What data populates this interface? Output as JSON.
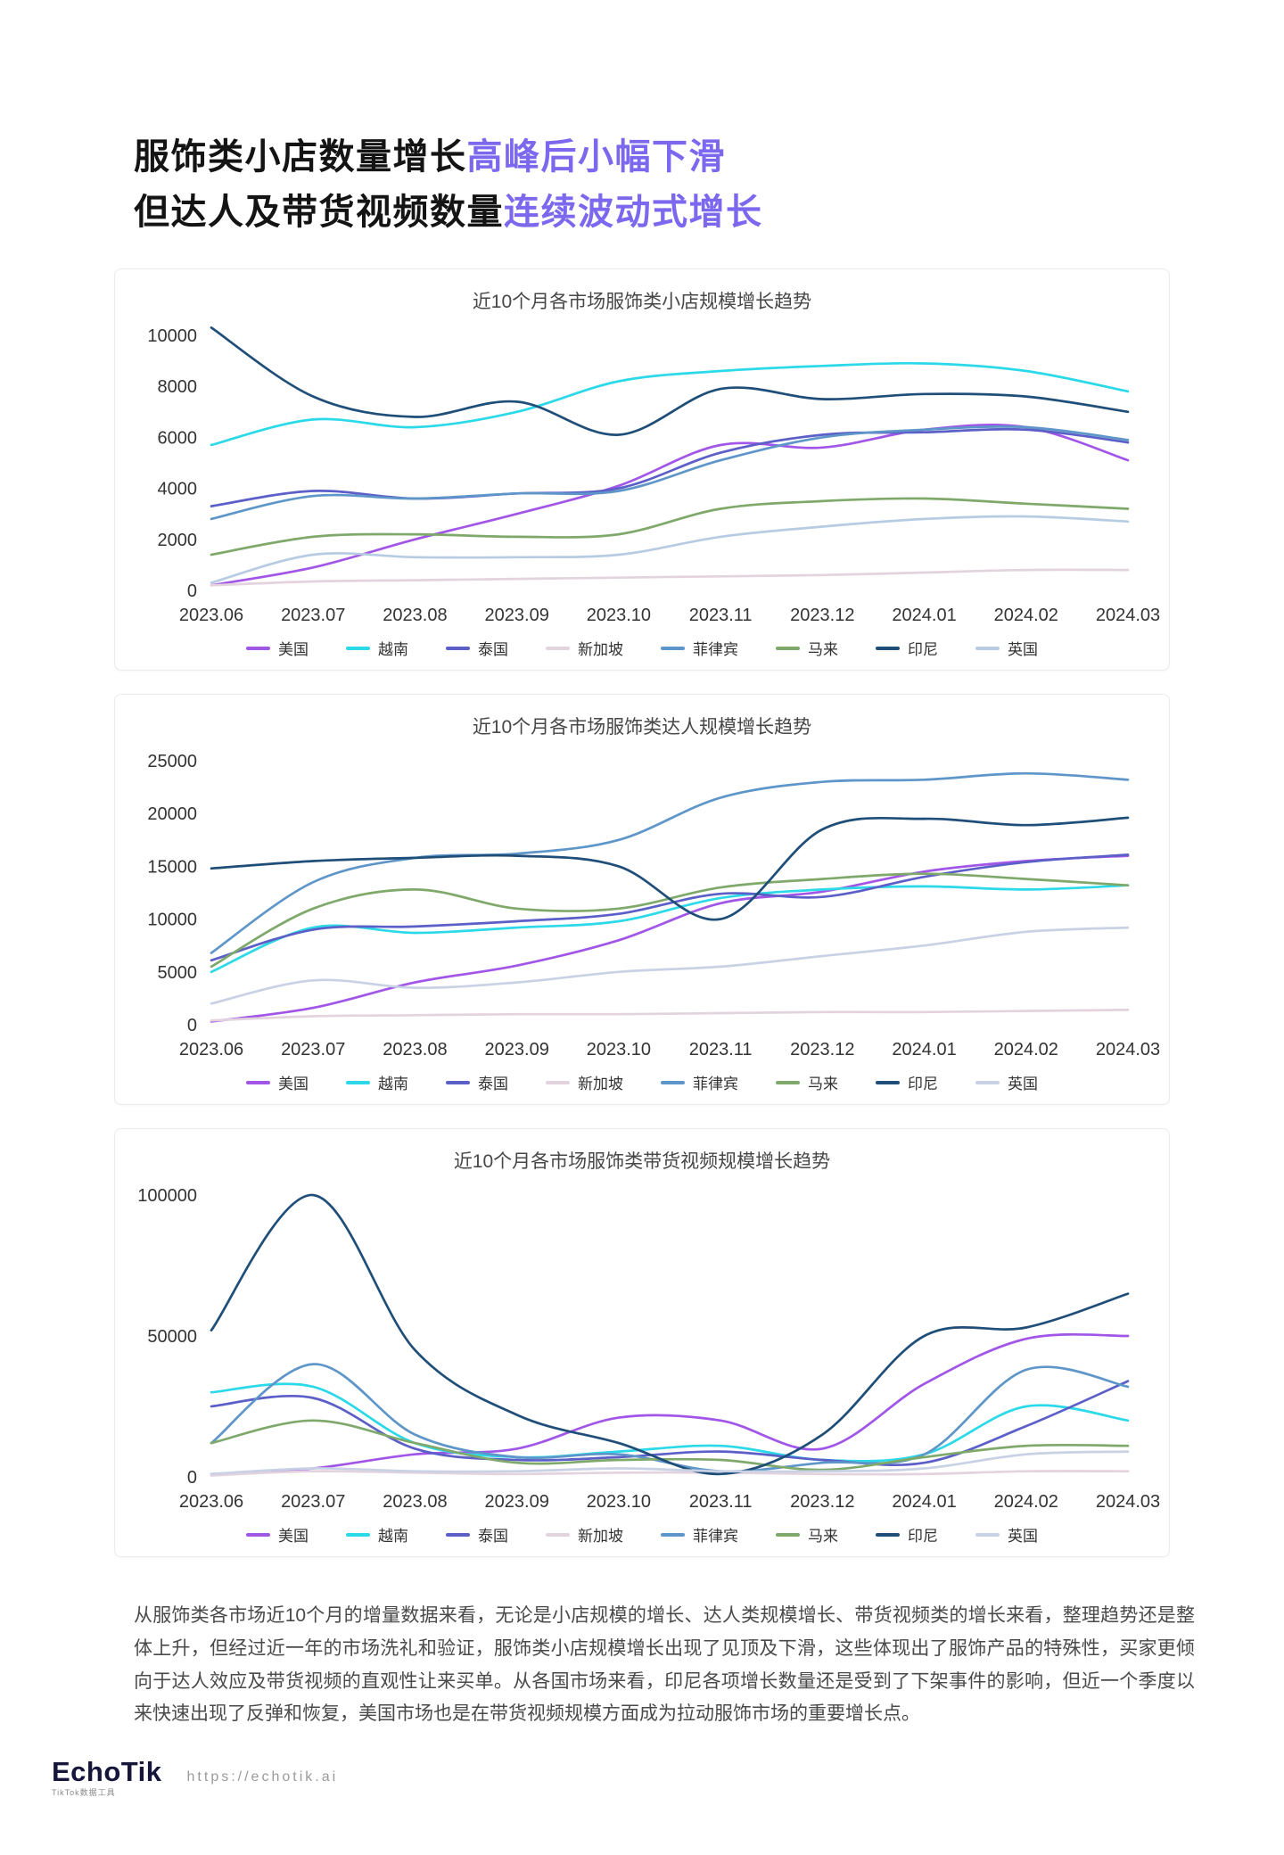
{
  "header": {
    "line1": {
      "normal": "服饰类小店数量增长",
      "highlight": "高峰后小幅下滑"
    },
    "line2": {
      "normal": "但达人及带货视频数量",
      "highlight": "连续波动式增长"
    },
    "highlight_color": "#7B68EE"
  },
  "chart_data": [
    {
      "type": "line",
      "title": "近10个月各市场服饰类小店规模增长趋势",
      "categories": [
        "2023.06",
        "2023.07",
        "2023.08",
        "2023.09",
        "2023.10",
        "2023.11",
        "2023.12",
        "2024.01",
        "2024.02",
        "2024.03"
      ],
      "ylim": [
        0,
        10000
      ],
      "yticks": [
        0,
        2000,
        4000,
        6000,
        8000,
        10000
      ],
      "grid": false,
      "legend_position": "bottom",
      "series": [
        {
          "name": "美国",
          "color": "#A156E8",
          "values": [
            200,
            900,
            2000,
            3000,
            4100,
            5700,
            5600,
            6300,
            6400,
            5100
          ]
        },
        {
          "name": "越南",
          "color": "#2BD9E8",
          "values": [
            5700,
            6700,
            6400,
            7000,
            8200,
            8600,
            8800,
            8900,
            8600,
            7800
          ]
        },
        {
          "name": "泰国",
          "color": "#5B5FC7",
          "values": [
            3300,
            3900,
            3600,
            3800,
            4000,
            5400,
            6100,
            6200,
            6300,
            5800
          ]
        },
        {
          "name": "新加坡",
          "color": "#E3D3DE",
          "values": [
            200,
            350,
            400,
            450,
            500,
            550,
            600,
            700,
            800,
            800
          ]
        },
        {
          "name": "菲律宾",
          "color": "#5E96C9",
          "values": [
            2800,
            3700,
            3600,
            3800,
            3900,
            5100,
            6000,
            6300,
            6400,
            5900
          ]
        },
        {
          "name": "马来",
          "color": "#7FA96B",
          "values": [
            1400,
            2100,
            2200,
            2100,
            2200,
            3200,
            3500,
            3600,
            3400,
            3200
          ]
        },
        {
          "name": "印尼",
          "color": "#1F4E79",
          "values": [
            10300,
            7600,
            6800,
            7400,
            6100,
            7900,
            7500,
            7700,
            7600,
            7000
          ]
        },
        {
          "name": "英国",
          "color": "#B7CCE3",
          "values": [
            300,
            1400,
            1300,
            1300,
            1400,
            2100,
            2500,
            2800,
            2900,
            2700
          ]
        }
      ]
    },
    {
      "type": "line",
      "title": "近10个月各市场服饰类达人规模增长趋势",
      "categories": [
        "2023.06",
        "2023.07",
        "2023.08",
        "2023.09",
        "2023.10",
        "2023.11",
        "2023.12",
        "2024.01",
        "2024.02",
        "2024.03"
      ],
      "ylim": [
        0,
        25000
      ],
      "yticks": [
        0,
        5000,
        10000,
        15000,
        20000,
        25000
      ],
      "grid": false,
      "legend_position": "bottom",
      "series": [
        {
          "name": "美国",
          "color": "#A156E8",
          "values": [
            300,
            1600,
            4000,
            5600,
            8000,
            11500,
            12600,
            14500,
            15500,
            16000
          ]
        },
        {
          "name": "越南",
          "color": "#2BD9E8",
          "values": [
            5000,
            9200,
            8700,
            9200,
            9800,
            12000,
            12800,
            13100,
            12800,
            13200
          ]
        },
        {
          "name": "泰国",
          "color": "#5B5FC7",
          "values": [
            6100,
            9000,
            9300,
            9800,
            10500,
            12400,
            12100,
            14000,
            15400,
            16100
          ]
        },
        {
          "name": "新加坡",
          "color": "#E3D3DE",
          "values": [
            400,
            800,
            900,
            1000,
            1000,
            1100,
            1200,
            1200,
            1300,
            1400
          ]
        },
        {
          "name": "菲律宾",
          "color": "#5E96C9",
          "values": [
            6800,
            13500,
            15800,
            16200,
            17500,
            21500,
            23000,
            23200,
            23800,
            23200
          ]
        },
        {
          "name": "马来",
          "color": "#7FA96B",
          "values": [
            5500,
            11000,
            12800,
            11000,
            11000,
            13000,
            13800,
            14300,
            13800,
            13200
          ]
        },
        {
          "name": "印尼",
          "color": "#1F4E79",
          "values": [
            14800,
            15500,
            15800,
            16000,
            15000,
            10000,
            18500,
            19500,
            18900,
            19600
          ]
        },
        {
          "name": "英国",
          "color": "#C9D2E4",
          "values": [
            2000,
            4200,
            3500,
            4000,
            5000,
            5500,
            6500,
            7500,
            8800,
            9200
          ]
        }
      ]
    },
    {
      "type": "line",
      "title": "近10个月各市场服饰类带货视频规模增长趋势",
      "categories": [
        "2023.06",
        "2023.07",
        "2023.08",
        "2023.09",
        "2023.10",
        "2023.11",
        "2023.12",
        "2024.01",
        "2024.02",
        "2024.03"
      ],
      "ylim": [
        0,
        100000
      ],
      "yticks": [
        0,
        50000,
        100000
      ],
      "grid": false,
      "legend_position": "bottom",
      "series": [
        {
          "name": "美国",
          "color": "#A156E8",
          "values": [
            1000,
            3000,
            8000,
            10000,
            21000,
            20000,
            10000,
            33000,
            49000,
            50000
          ]
        },
        {
          "name": "越南",
          "color": "#2BD9E8",
          "values": [
            30000,
            32000,
            12000,
            7000,
            9000,
            11000,
            6000,
            8000,
            25000,
            20000
          ]
        },
        {
          "name": "泰国",
          "color": "#5B5FC7",
          "values": [
            25000,
            28000,
            10000,
            6000,
            7000,
            9000,
            6000,
            5000,
            18000,
            34000
          ]
        },
        {
          "name": "新加坡",
          "color": "#E3D3DE",
          "values": [
            500,
            2000,
            1500,
            1000,
            1500,
            1500,
            1000,
            1000,
            2000,
            2000
          ]
        },
        {
          "name": "菲律宾",
          "color": "#5E96C9",
          "values": [
            12000,
            40000,
            15000,
            7000,
            8000,
            2000,
            5000,
            8000,
            38000,
            32000
          ]
        },
        {
          "name": "马来",
          "color": "#7FA96B",
          "values": [
            12000,
            20000,
            12000,
            5000,
            6000,
            6000,
            2500,
            7000,
            11000,
            11000
          ]
        },
        {
          "name": "印尼",
          "color": "#1F4E79",
          "values": [
            52000,
            100000,
            45000,
            22000,
            12000,
            1000,
            15000,
            50000,
            53000,
            65000
          ]
        },
        {
          "name": "英国",
          "color": "#C9D2E4",
          "values": [
            1000,
            3000,
            2000,
            2000,
            3000,
            2000,
            2000,
            3000,
            8000,
            9000
          ]
        }
      ]
    }
  ],
  "summary": "从服饰类各市场近10个月的增量数据来看，无论是小店规模的增长、达人类规模增长、带货视频类的增长来看，整理趋势还是整体上升，但经过近一年的市场洗礼和验证，服饰类小店规模增长出现了见顶及下滑，这些体现出了服饰产品的特殊性，买家更倾向于达人效应及带货视频的直观性让来买单。从各国市场来看，印尼各项增长数量还是受到了下架事件的影响，但近一个季度以来快速出现了反弹和恢复，美国市场也是在带货视频规模方面成为拉动服饰市场的重要增长点。",
  "footer": {
    "logo": "EchoTik",
    "logo_sub": "TikTok数据工具",
    "url": "https://echotik.ai"
  }
}
